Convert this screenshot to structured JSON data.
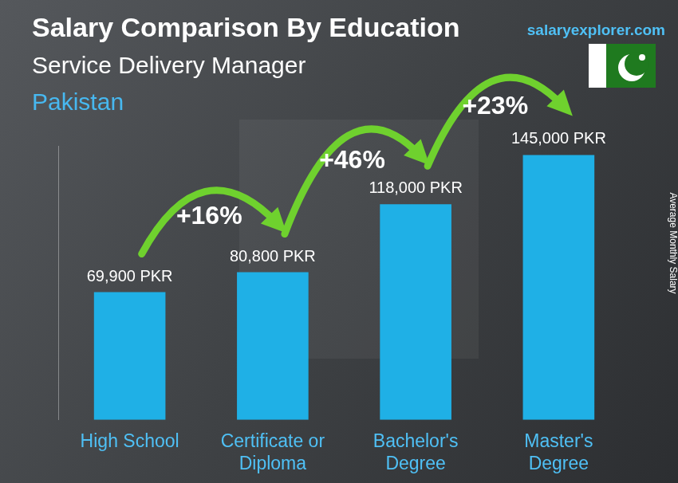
{
  "chart_data": {
    "type": "bar",
    "title": "Salary Comparison By Education",
    "subtitle": "Service Delivery Manager",
    "country": "Pakistan",
    "brand": "salaryexplorer.com",
    "y_label": "Average Monthly Salary",
    "categories": [
      "High School",
      "Certificate or Diploma",
      "Bachelor's Degree",
      "Master's Degree"
    ],
    "values": [
      69900,
      80800,
      118000,
      145000
    ],
    "value_labels": [
      "69,900 PKR",
      "80,800 PKR",
      "118,000 PKR",
      "145,000 PKR"
    ],
    "data_labels": true,
    "annotations": [
      "+16%",
      "+46%",
      "+23%"
    ],
    "color": "#1fb0e6",
    "ylim": [
      0,
      150000
    ],
    "yticks": [],
    "grid": false,
    "tick_labels": "x"
  }
}
